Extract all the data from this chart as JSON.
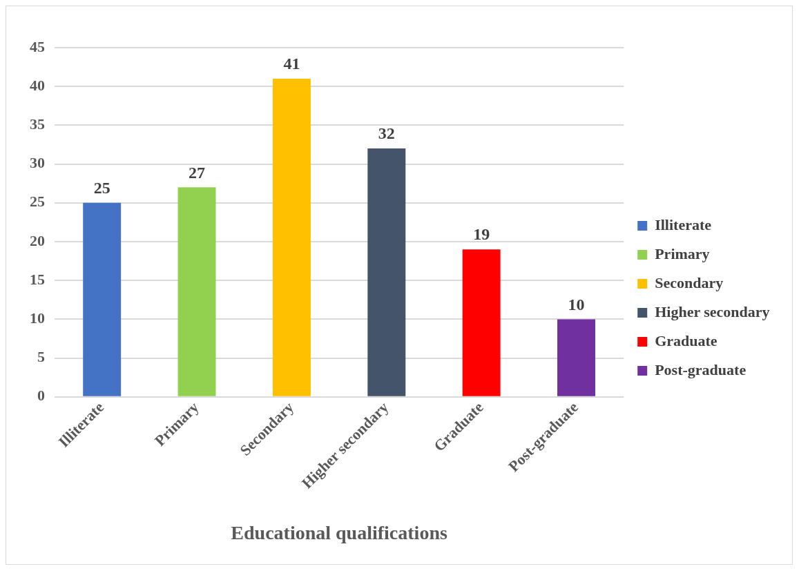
{
  "chart_data": {
    "type": "bar",
    "xlabel": "Educational qualifications",
    "categories": [
      "Illiterate",
      "Primary",
      "Secondary",
      "Higher secondary",
      "Graduate",
      "Post-graduate"
    ],
    "series": [
      {
        "name": "Illiterate",
        "color": "#4472c4",
        "values": [
          25,
          null,
          null,
          null,
          null,
          null
        ]
      },
      {
        "name": "Primary",
        "color": "#92d050",
        "values": [
          null,
          27,
          null,
          null,
          null,
          null
        ]
      },
      {
        "name": "Secondary",
        "color": "#ffc000",
        "values": [
          null,
          null,
          41,
          null,
          null,
          null
        ]
      },
      {
        "name": "Higher secondary",
        "color": "#44546a",
        "values": [
          null,
          null,
          null,
          32,
          null,
          null
        ]
      },
      {
        "name": "Graduate",
        "color": "#ff0000",
        "values": [
          null,
          null,
          null,
          null,
          19,
          null
        ]
      },
      {
        "name": "Post-graduate",
        "color": "#7030a0",
        "values": [
          null,
          null,
          null,
          null,
          null,
          10
        ]
      }
    ],
    "ylim": [
      0,
      45
    ],
    "yticks": [
      0,
      5,
      10,
      15,
      20,
      25,
      30,
      35,
      40,
      45
    ],
    "grid": "y",
    "legend": "right",
    "data_labels": true
  }
}
